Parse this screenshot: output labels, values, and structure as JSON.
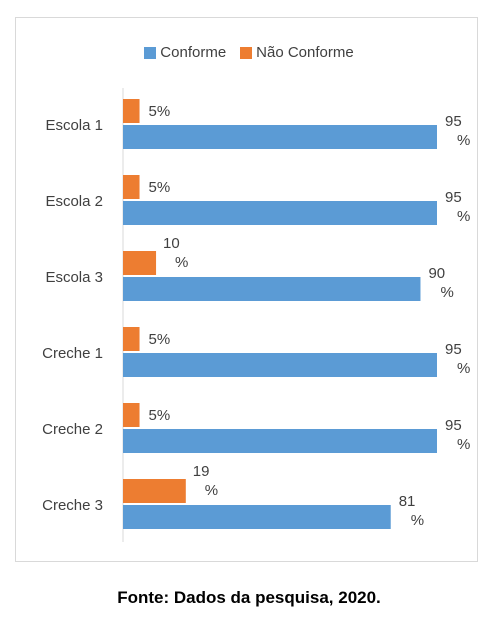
{
  "chart_data": {
    "type": "bar",
    "orientation": "horizontal",
    "categories": [
      "Escola 1",
      "Escola 2",
      "Escola 3",
      "Creche 1",
      "Creche 2",
      "Creche 3"
    ],
    "series": [
      {
        "name": "Conforme",
        "color": "#5b9bd5",
        "values": [
          95,
          95,
          90,
          95,
          95,
          81
        ],
        "labels": [
          "95 %",
          "95 %",
          "90 %",
          "95 %",
          "95 %",
          "81 %"
        ]
      },
      {
        "name": "Não Conforme",
        "color": "#ed7d31",
        "values": [
          5,
          5,
          10,
          5,
          5,
          19
        ],
        "labels": [
          "5%",
          "5%",
          "10 %",
          "5%",
          "5%",
          "19 %"
        ]
      }
    ],
    "xlim": [
      0,
      100
    ],
    "legend_position": "top",
    "grid": false
  },
  "caption": "Fonte: Dados da pesquisa, 2020."
}
